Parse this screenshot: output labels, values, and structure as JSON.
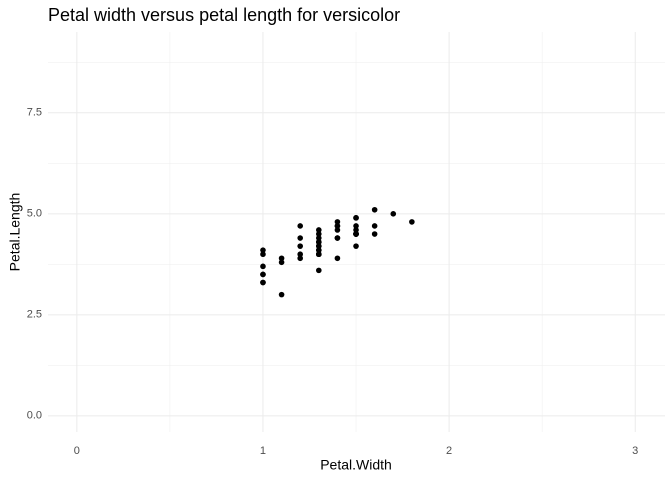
{
  "chart_data": {
    "type": "scatter",
    "title": "Petal width versus petal length for versicolor",
    "x_label": "Petal.Width",
    "y_label": "Petal.Length",
    "series": [
      {
        "color": "#000000",
        "x": [
          1.4,
          1.5,
          1.5,
          1.3,
          1.5,
          1.3,
          1.6,
          1.0,
          1.3,
          1.4,
          1.0,
          1.5,
          1.0,
          1.4,
          1.3,
          1.4,
          1.5,
          1.0,
          1.5,
          1.1,
          1.8,
          1.3,
          1.5,
          1.2,
          1.3,
          1.4,
          1.4,
          1.7,
          1.5,
          1.0,
          1.1,
          1.0,
          1.2,
          1.6,
          1.5,
          1.6,
          1.5,
          1.3,
          1.3,
          1.3,
          1.2,
          1.4,
          1.2,
          1.0,
          1.3,
          1.2,
          1.3,
          1.3,
          1.1,
          1.3
        ],
        "values": [
          4.7,
          4.5,
          4.9,
          4.0,
          4.6,
          4.5,
          4.7,
          3.3,
          4.6,
          3.9,
          3.5,
          4.2,
          4.0,
          4.7,
          3.6,
          4.4,
          4.5,
          4.1,
          4.5,
          3.9,
          4.8,
          4.0,
          4.9,
          4.7,
          4.3,
          4.4,
          4.8,
          5.0,
          4.5,
          3.5,
          3.8,
          3.7,
          3.9,
          5.1,
          4.5,
          4.5,
          4.7,
          4.4,
          4.1,
          4.0,
          4.4,
          4.6,
          4.0,
          3.3,
          4.2,
          4.2,
          4.2,
          4.3,
          3.0,
          4.1
        ]
      }
    ],
    "xlim": [
      -0.155,
      3.16
    ],
    "ylim": [
      -0.4,
      9.5
    ],
    "xticks": [
      0,
      1,
      2,
      3
    ],
    "yticks": [
      {
        "value": 0,
        "label": "0.0"
      },
      2.5,
      {
        "value": 5,
        "label": "5.0"
      },
      7.5
    ],
    "minor_xgrid": [
      0.5,
      1.5,
      2.5
    ],
    "minor_ygrid": [
      1.25,
      3.75,
      6.25,
      8.75
    ],
    "grid": true
  }
}
